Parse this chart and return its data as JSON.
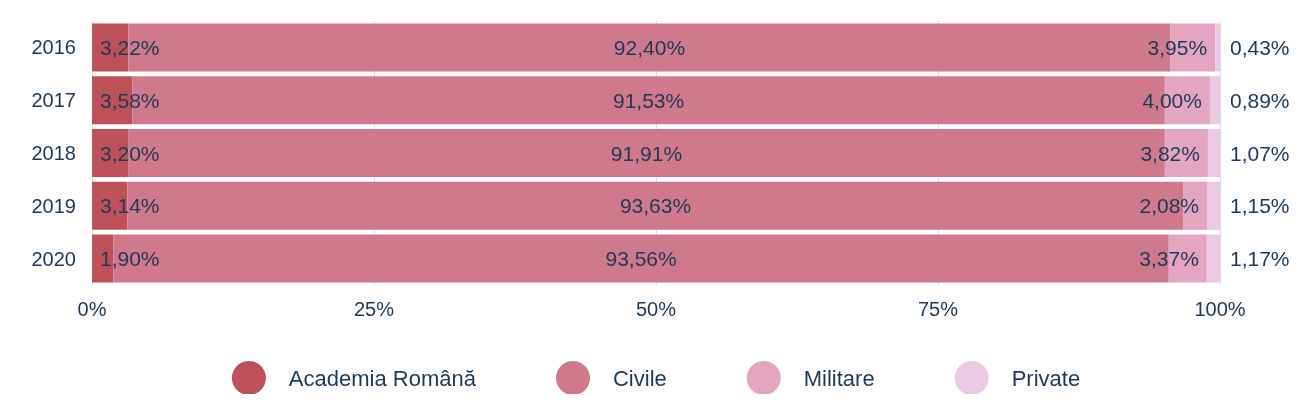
{
  "chart_data": {
    "type": "bar",
    "orientation": "horizontal",
    "stacked": true,
    "categories": [
      "2016",
      "2017",
      "2018",
      "2019",
      "2020"
    ],
    "series": [
      {
        "name": "Academia Română",
        "color": "#be505a",
        "values": [
          3.22,
          3.58,
          3.2,
          3.14,
          1.9
        ],
        "value_labels": [
          "3,22%",
          "3,58%",
          "3,20%",
          "3,14%",
          "1,90%"
        ]
      },
      {
        "name": "Civile",
        "color": "#d0788c",
        "values": [
          92.4,
          91.53,
          91.91,
          93.63,
          93.56
        ],
        "value_labels": [
          "92,40%",
          "91,53%",
          "91,91%",
          "93,63%",
          "93,56%"
        ]
      },
      {
        "name": "Militare",
        "color": "#e3a5c0",
        "values": [
          3.95,
          4.0,
          3.82,
          2.08,
          3.37
        ],
        "value_labels": [
          "3,95%",
          "4,00%",
          "3,82%",
          "2,08%",
          "3,37%"
        ]
      },
      {
        "name": "Private",
        "color": "#ebcbe3",
        "values": [
          0.43,
          0.89,
          1.07,
          1.15,
          1.17
        ],
        "value_labels": [
          "0,43%",
          "0,89%",
          "1,07%",
          "1,15%",
          "1,17%"
        ]
      }
    ],
    "xlim": [
      0,
      100
    ],
    "xticks": [
      {
        "value": 0,
        "label": "0%"
      },
      {
        "value": 25,
        "label": "25%"
      },
      {
        "value": 50,
        "label": "50%"
      },
      {
        "value": 75,
        "label": "75%"
      },
      {
        "value": 100,
        "label": "100%"
      }
    ],
    "grid": "x",
    "legend": "bottom"
  }
}
